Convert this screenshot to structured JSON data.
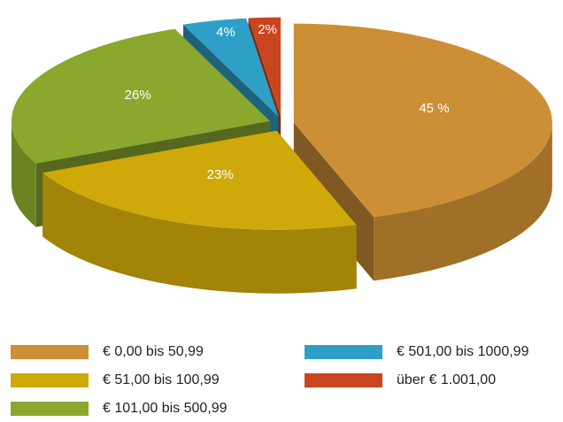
{
  "chart_data": {
    "type": "pie",
    "categories": [
      "€ 0,00 bis 50,99",
      "€ 51,00 bis 100,99",
      "€ 101,00 bis 500,99",
      "€ 501,00 bis 1000,99",
      "über € 1.001,00"
    ],
    "values": [
      45,
      23,
      26,
      4,
      2
    ],
    "value_labels": [
      "45 %",
      "23%",
      "26%",
      "4%",
      "2%"
    ],
    "colors": [
      "#cd8f35",
      "#cfa90a",
      "#8aa82e",
      "#2ea0c8",
      "#c8451e"
    ],
    "legend": "bottom"
  }
}
